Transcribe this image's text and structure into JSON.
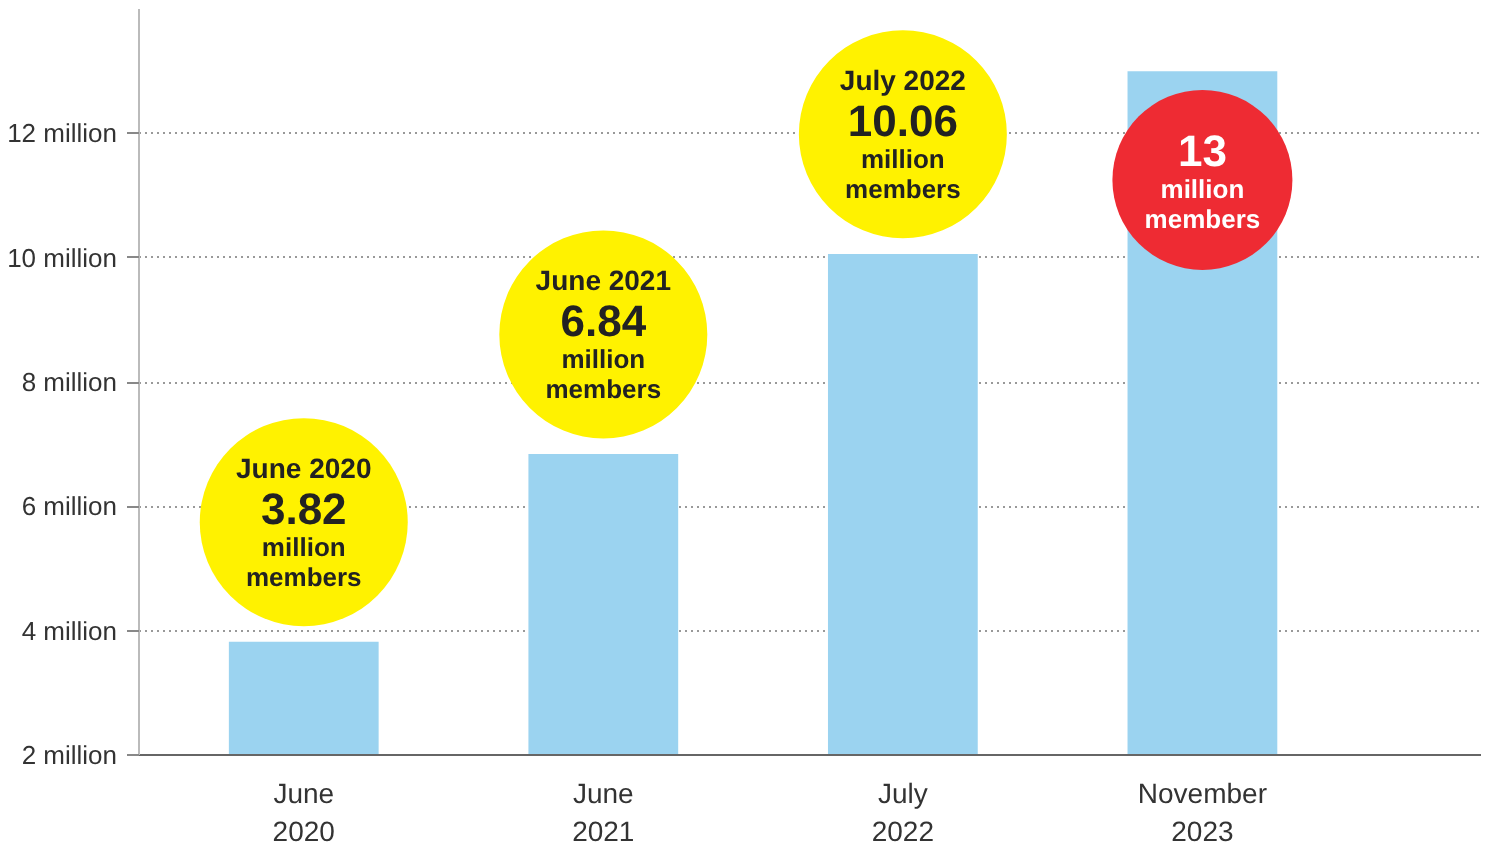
{
  "chart_data": {
    "type": "bar",
    "categories": [
      "June 2020",
      "June 2021",
      "July 2022",
      "November 2023"
    ],
    "values": [
      3.82,
      6.84,
      10.06,
      13
    ],
    "color": "#9bd3f0",
    "value_labels": [
      "3.82",
      "6.84",
      "10.06",
      "13"
    ],
    "annotations": [
      "June 2020",
      "June 2021",
      "July 2022",
      "million members",
      "million members",
      "million members",
      "million members"
    ],
    "ylim": [
      2,
      14
    ],
    "yticks": [
      {
        "value": 2,
        "label": "2 million"
      },
      {
        "value": 4,
        "label": "4 million"
      },
      {
        "value": 6,
        "label": "6 million"
      },
      {
        "value": 8,
        "label": "8 million"
      },
      {
        "value": 10,
        "label": "10 million"
      },
      {
        "value": 12,
        "label": "12 million"
      }
    ],
    "grid": "y"
  }
}
